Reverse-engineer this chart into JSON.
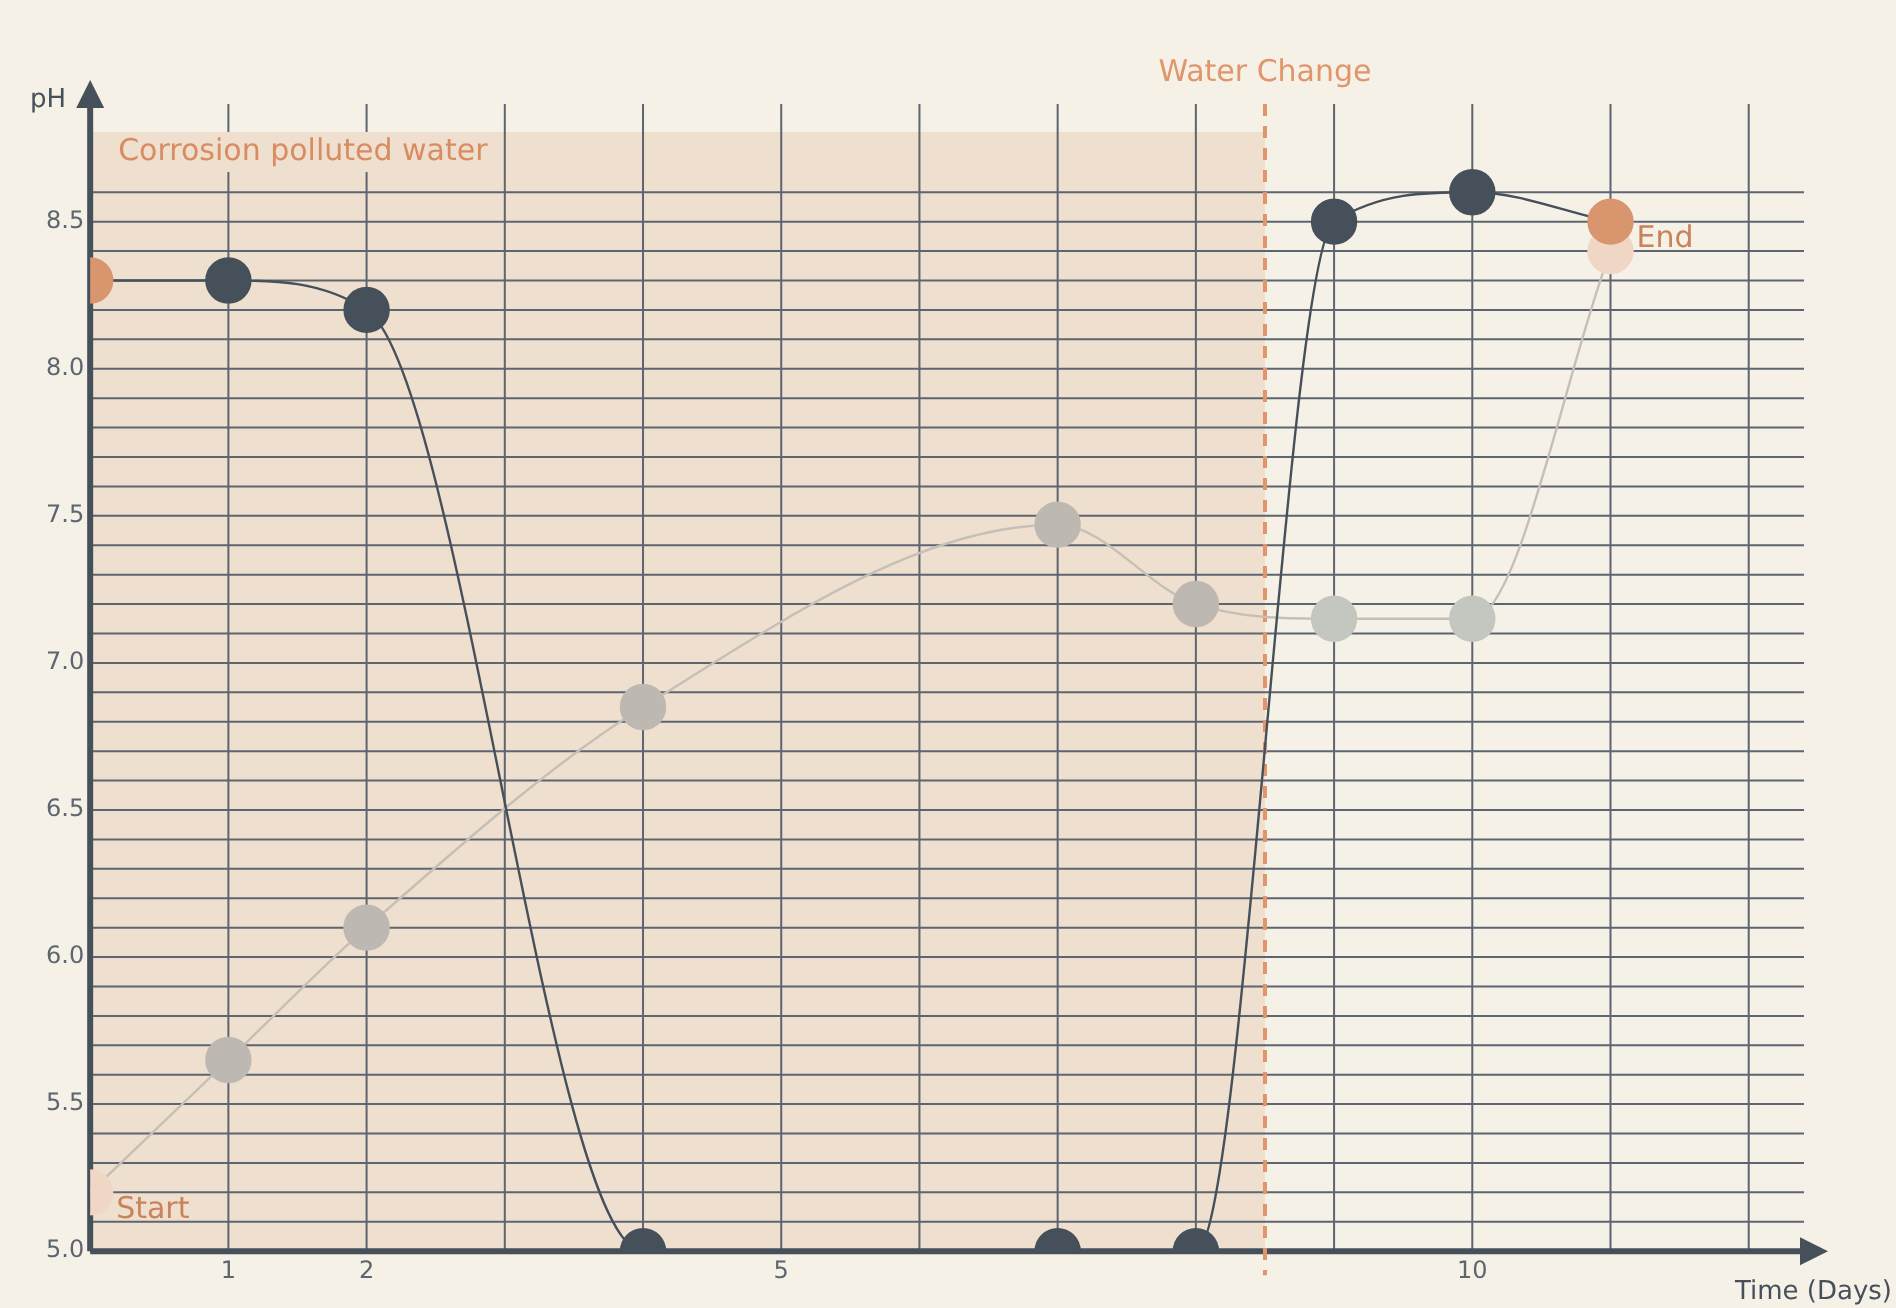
{
  "chart_data": {
    "type": "line",
    "xlabel": "Time (Days)",
    "ylabel": "pH",
    "xlim": [
      0,
      12.4
    ],
    "ylim": [
      5,
      8.9
    ],
    "xticks": [
      {
        "value": 0,
        "label": null
      },
      1,
      2,
      {
        "value": 3,
        "label": null
      },
      {
        "value": 4,
        "label": null
      },
      5,
      {
        "value": 6,
        "label": null
      },
      {
        "value": 7,
        "label": null
      },
      {
        "value": 8,
        "label": null
      },
      {
        "value": 9,
        "label": null
      },
      10,
      {
        "value": 11,
        "label": null
      },
      {
        "value": 12,
        "label": null
      }
    ],
    "yticks": [
      {
        "value": 5,
        "label": "5.0"
      },
      {
        "value": 5.1,
        "label": null
      },
      {
        "value": 5.2,
        "label": null
      },
      {
        "value": 5.3,
        "label": null
      },
      {
        "value": 5.4,
        "label": null
      },
      5.5,
      {
        "value": 5.6,
        "label": null
      },
      {
        "value": 5.7,
        "label": null
      },
      {
        "value": 5.8,
        "label": null
      },
      {
        "value": 5.9,
        "label": null
      },
      {
        "value": 6,
        "label": "6.0"
      },
      {
        "value": 6.1,
        "label": null
      },
      {
        "value": 6.2,
        "label": null
      },
      {
        "value": 6.3,
        "label": null
      },
      {
        "value": 6.4,
        "label": null
      },
      6.5,
      {
        "value": 6.6,
        "label": null
      },
      {
        "value": 6.7,
        "label": null
      },
      {
        "value": 6.8,
        "label": null
      },
      {
        "value": 6.9,
        "label": null
      },
      {
        "value": 7,
        "label": "7.0"
      },
      {
        "value": 7.1,
        "label": null
      },
      {
        "value": 7.2,
        "label": null
      },
      {
        "value": 7.3,
        "label": null
      },
      {
        "value": 7.4,
        "label": null
      },
      7.5,
      {
        "value": 7.6,
        "label": null
      },
      {
        "value": 7.7,
        "label": null
      },
      {
        "value": 7.8,
        "label": null
      },
      {
        "value": 7.9,
        "label": null
      },
      {
        "value": 8,
        "label": "8.0"
      },
      {
        "value": 8.1,
        "label": null
      },
      {
        "value": 8.2,
        "label": null
      },
      {
        "value": 8.3,
        "label": null
      },
      {
        "value": 8.4,
        "label": null
      },
      8.5,
      {
        "value": 8.6,
        "label": null
      }
    ],
    "grid": true,
    "marker": "circle",
    "line_style": "solid",
    "series": [
      {
        "color": "#46505b",
        "x": [
          0,
          1,
          2,
          4,
          7,
          8,
          9,
          10,
          11
        ],
        "values": [
          8.3,
          8.3,
          8.2,
          5.0,
          5.0,
          5.0,
          8.5,
          8.6,
          8.5
        ],
        "colors": [
          "#d9956e",
          "#46505b",
          "#46505b",
          "#46505b",
          "#46505b",
          "#46505b",
          "#46505b",
          "#46505b",
          "#d9956e"
        ]
      },
      {
        "color": "#c4c0b8",
        "x": [
          0,
          1,
          2,
          4,
          7,
          8,
          9,
          10,
          11
        ],
        "values": [
          5.2,
          5.65,
          6.1,
          6.85,
          7.47,
          7.2,
          7.15,
          7.15,
          8.4
        ],
        "colors": [
          "#f0d6c4",
          "#bdb8b2",
          "#bdb8b2",
          "#bdb8b2",
          "#bdb8b2",
          "#bdb8b2",
          "#c4c6c0",
          "#c4c6c0",
          "#f0d6c4"
        ]
      }
    ],
    "bands": [
      {
        "axis": "x",
        "from": 0,
        "to": 8.5,
        "label": "Corrosion polluted water",
        "color": "#eedfce"
      }
    ],
    "ref_lines": [
      {
        "axis": "x",
        "value": 8.5,
        "label": "Water Change",
        "color": "#e0956a",
        "line_style": "dashed"
      }
    ],
    "annotations": [
      {
        "text": "Start",
        "x": 0,
        "y": 5.2
      },
      {
        "text": "End",
        "x": 11,
        "y": 8.5
      }
    ]
  }
}
